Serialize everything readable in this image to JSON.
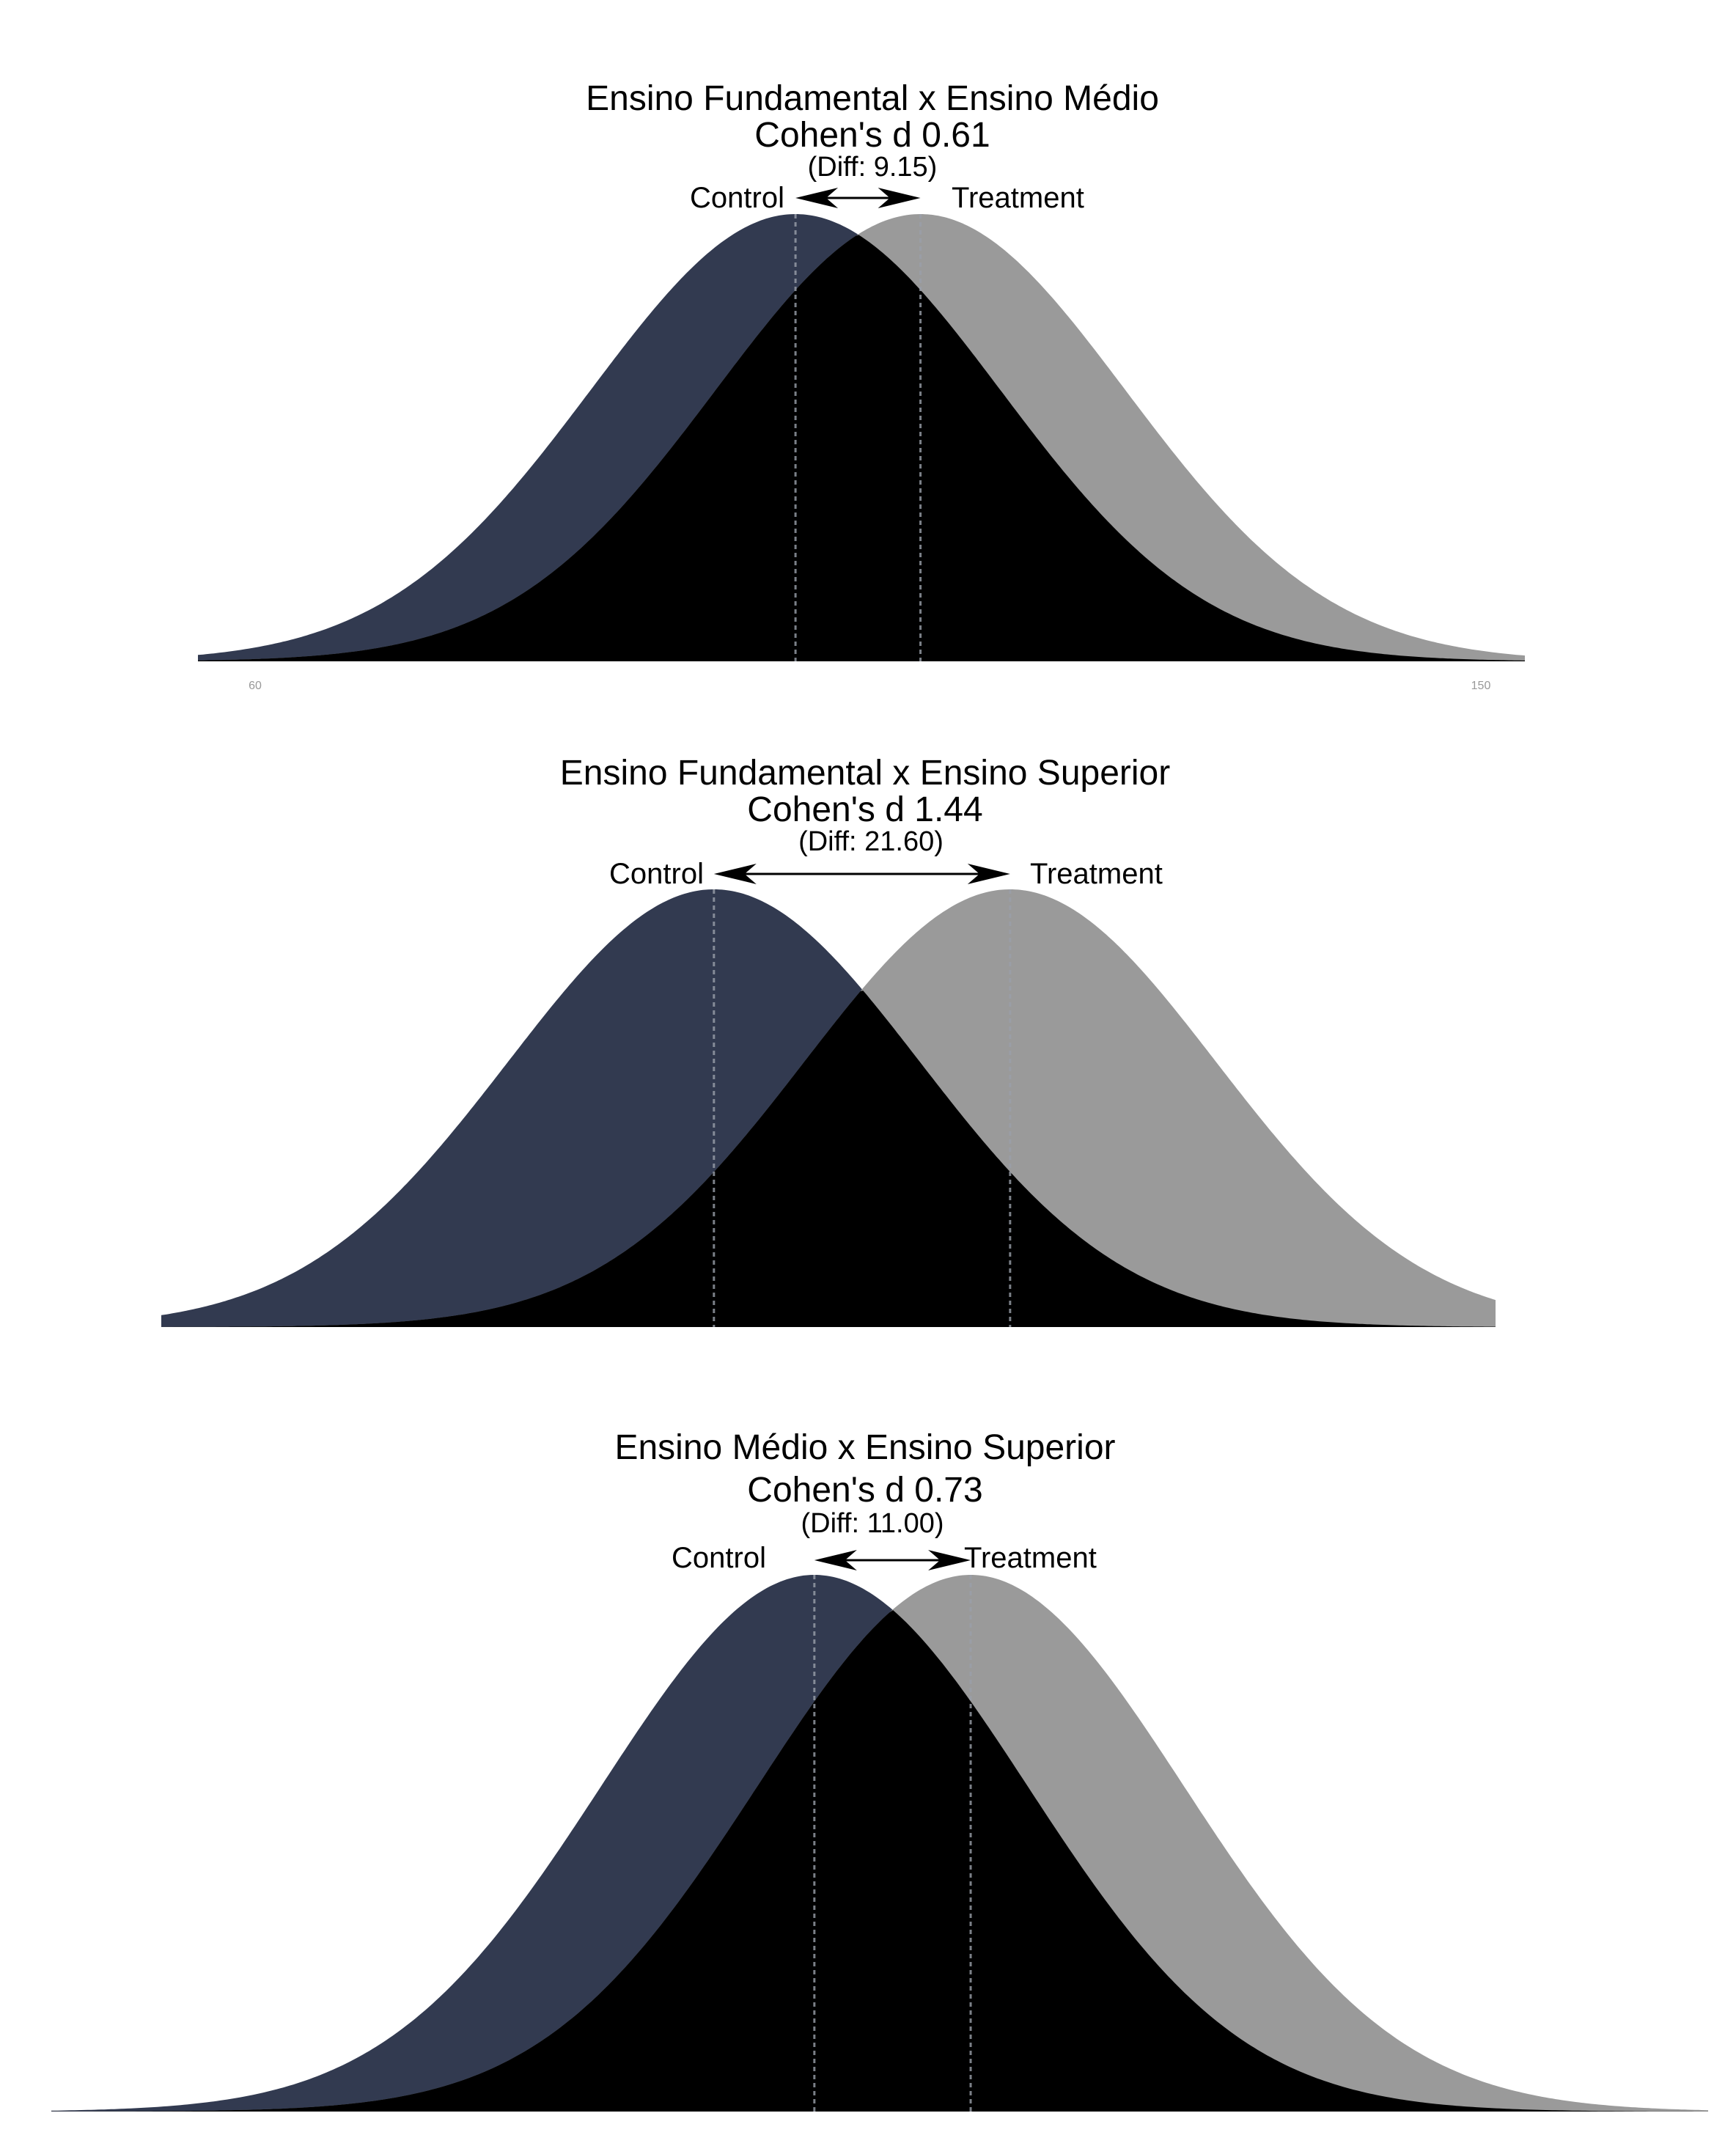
{
  "colors": {
    "control": "#323a50",
    "treatment": "#9a9a9a",
    "overlap": "#000000",
    "mean_line": "#9aa0aa",
    "arrow": "#000000",
    "background": "#ffffff"
  },
  "chart_data": [
    {
      "type": "area",
      "title": "Ensino Fundamental x Ensino Médio",
      "subtitle": "Cohen's d 0.61",
      "diff_label": "(Diff: 9.15)",
      "control_label": "Control",
      "treatment_label": "Treatment",
      "series": [
        {
          "name": "Control",
          "mean": 100,
          "sd": 15
        },
        {
          "name": "Treatment",
          "mean": 109.15,
          "sd": 15
        }
      ],
      "cohens_d": 0.61,
      "diff": 9.15,
      "xlim": [
        56.25,
        153.4
      ],
      "x_ticks": [
        "60",
        "150"
      ],
      "grid": false
    },
    {
      "type": "area",
      "title": "Ensino Fundamental x Ensino Superior",
      "subtitle": "Cohen's d 1.44",
      "diff_label": "(Diff: 21.60)",
      "control_label": "Control",
      "treatment_label": "Treatment",
      "series": [
        {
          "name": "Control",
          "mean": 100,
          "sd": 15
        },
        {
          "name": "Treatment",
          "mean": 121.6,
          "sd": 15
        }
      ],
      "cohens_d": 1.44,
      "diff": 21.6,
      "xlim": [
        59.7,
        157
      ],
      "x_ticks": [],
      "grid": false
    },
    {
      "type": "area",
      "title": "Ensino Médio x Ensino Superior",
      "subtitle": "Cohen's d 0.73",
      "diff_label": "(Diff: 11.00)",
      "control_label": "Control",
      "treatment_label": "Treatment",
      "series": [
        {
          "name": "Control",
          "mean": 100,
          "sd": 15
        },
        {
          "name": "Treatment",
          "mean": 111,
          "sd": 15
        }
      ],
      "cohens_d": 0.73,
      "diff": 11,
      "xlim": [
        46.3,
        162.9
      ],
      "x_ticks": [],
      "grid": false
    }
  ]
}
